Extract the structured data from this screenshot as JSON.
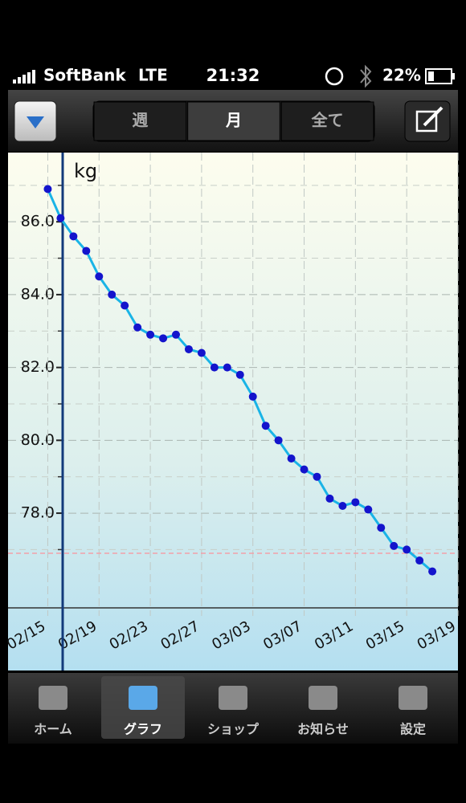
{
  "status_bar": {
    "carrier": "SoftBank",
    "network": "LTE",
    "time": "21:32",
    "battery": "22%"
  },
  "segments": [
    "週",
    "月",
    "全て"
  ],
  "selected_segment": 1,
  "chart_data": {
    "type": "line",
    "y_unit_label": "kg",
    "x": [
      0,
      1,
      2,
      3,
      4,
      5,
      6,
      7,
      8,
      9,
      10,
      11,
      12,
      13,
      14,
      15,
      16,
      17,
      18,
      19,
      20,
      21,
      22,
      23,
      24,
      25,
      26,
      27,
      28,
      29,
      30
    ],
    "xticks": [
      {
        "value": 0,
        "label": "02/15"
      },
      {
        "value": 4,
        "label": "02/19"
      },
      {
        "value": 8,
        "label": "02/23"
      },
      {
        "value": 12,
        "label": "02/27"
      },
      {
        "value": 16,
        "label": "03/03"
      },
      {
        "value": 20,
        "label": "03/07"
      },
      {
        "value": 24,
        "label": "03/11"
      },
      {
        "value": 28,
        "label": "03/15"
      },
      {
        "value": 32,
        "label": "03/19"
      }
    ],
    "xlim": [
      -3.1,
      32
    ],
    "series": [
      {
        "color": "#1ab4e6",
        "marker_color": "#1414cc",
        "values": [
          86.9,
          86.1,
          85.6,
          85.2,
          84.5,
          84.0,
          83.7,
          83.1,
          82.9,
          82.8,
          82.9,
          82.5,
          82.4,
          82.0,
          82.0,
          81.8,
          81.2,
          80.4,
          80.0,
          79.5,
          79.2,
          79.0,
          78.4,
          78.2,
          78.3,
          78.1,
          77.6,
          77.1,
          77.0,
          76.7,
          76.4
        ]
      }
    ],
    "ylim": [
      75.4,
      87.9
    ],
    "yticks": [
      {
        "value": 78,
        "label": "78.0"
      },
      {
        "value": 80,
        "label": "80.0"
      },
      {
        "value": 82,
        "label": "82.0"
      },
      {
        "value": 84,
        "label": "84.0"
      },
      {
        "value": 86,
        "label": "86.0"
      }
    ],
    "minor_yticks": [
      77,
      79,
      81,
      83,
      85,
      87
    ],
    "target_line": {
      "value": 76.9,
      "color": "#f2a0a8"
    }
  },
  "tabs": [
    "ホーム",
    "グラフ",
    "ショップ",
    "お知らせ",
    "設定"
  ],
  "selected_tab": 1
}
